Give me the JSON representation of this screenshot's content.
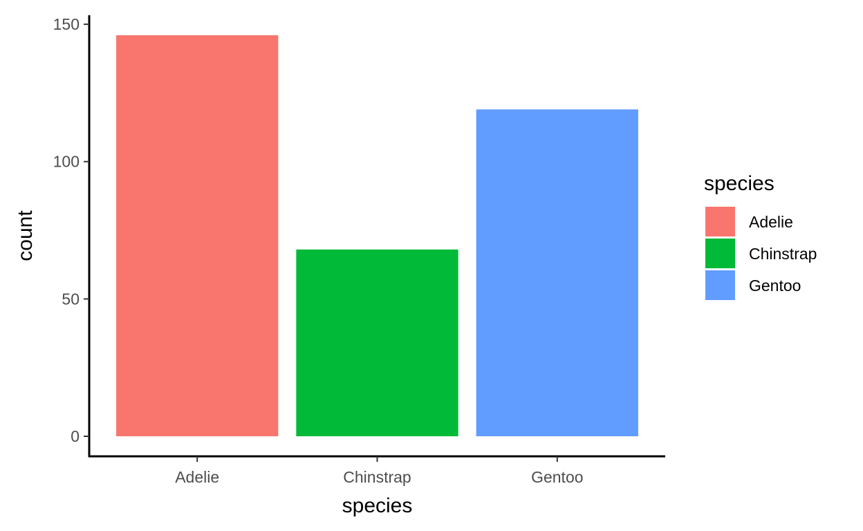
{
  "chart_data": {
    "type": "bar",
    "categories": [
      "Adelie",
      "Chinstrap",
      "Gentoo"
    ],
    "values": [
      146,
      68,
      119
    ],
    "colors": [
      "#F8766D",
      "#00BA38",
      "#619CFF"
    ],
    "title": "",
    "xlabel": "species",
    "ylabel": "count",
    "ylim": [
      -7.3,
      153.3
    ],
    "yticks": [
      0,
      50,
      100,
      150
    ],
    "grid": false,
    "legend": {
      "title": "species",
      "position": "right",
      "entries": [
        "Adelie",
        "Chinstrap",
        "Gentoo"
      ]
    }
  }
}
